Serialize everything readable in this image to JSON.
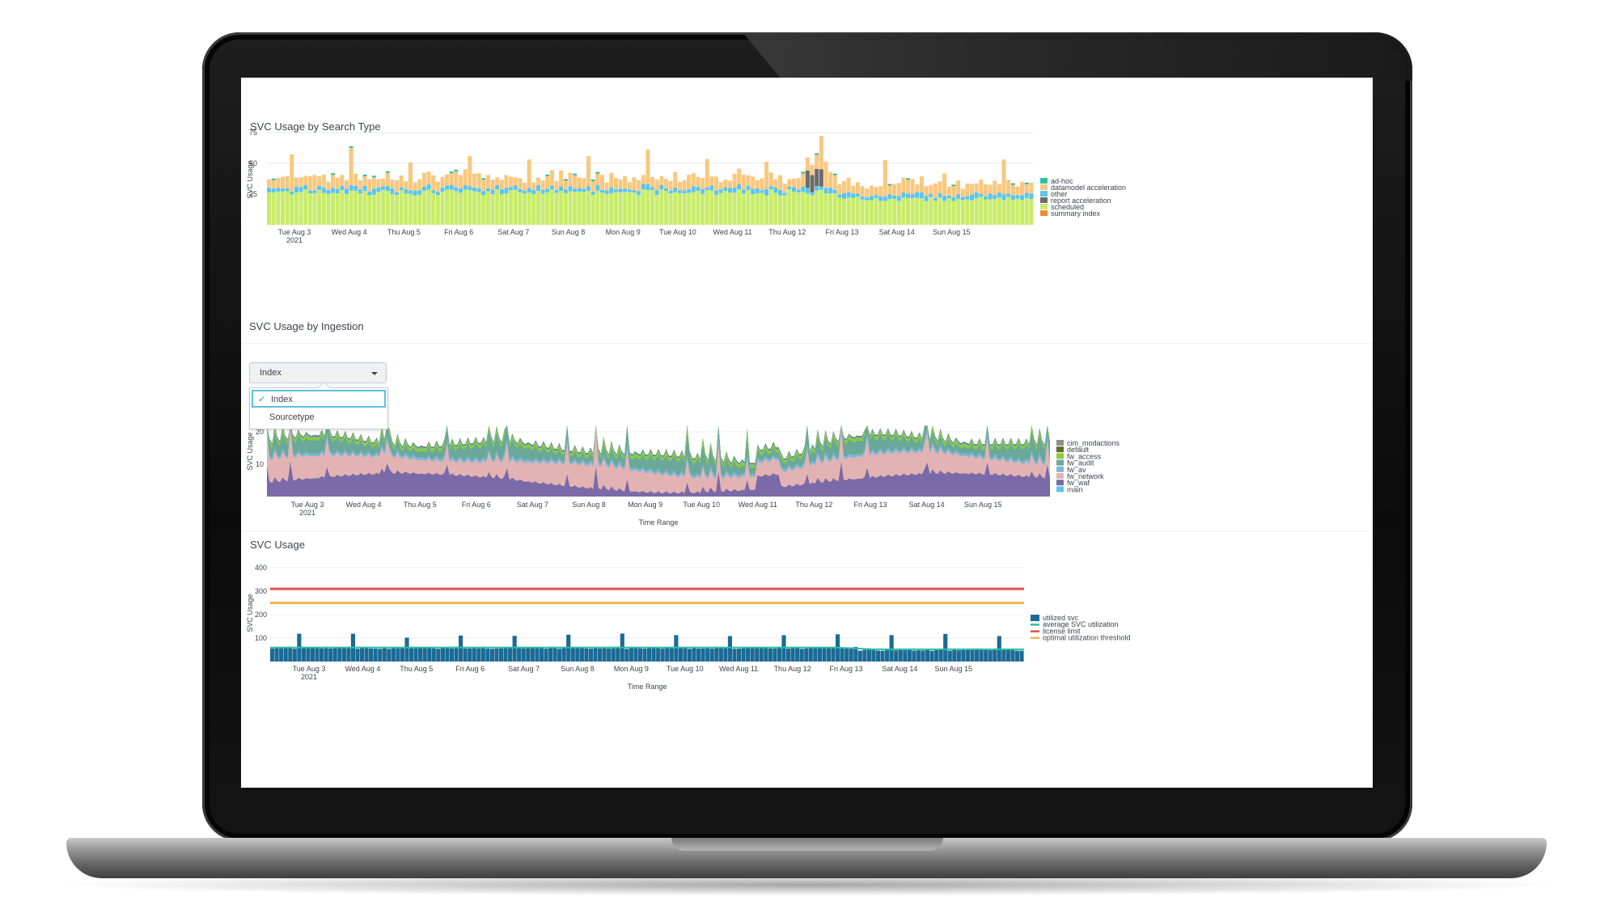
{
  "charts": {
    "search_type": {
      "title": "SVC Usage by Search Type",
      "ylabel": "SVC Usage",
      "yticks": [
        "75",
        "50",
        "25"
      ],
      "xticks": [
        "Tue Aug 3",
        "Wed Aug 4",
        "Thu Aug 5",
        "Fri Aug 6",
        "Sat Aug 7",
        "Sun Aug 8",
        "Mon Aug 9",
        "Tue Aug 10",
        "Wed Aug 11",
        "Thu Aug 12",
        "Fri Aug 13",
        "Sat Aug 14",
        "Sun Aug 15"
      ],
      "year": "2021",
      "legend": [
        {
          "name": "ad-hoc",
          "color": "#2fbf9f"
        },
        {
          "name": "datamodel acceleration",
          "color": "#f8c87f"
        },
        {
          "name": "other",
          "color": "#5bc4f0"
        },
        {
          "name": "report acceleration",
          "color": "#6b6b6b"
        },
        {
          "name": "scheduled",
          "color": "#c8ec6a"
        },
        {
          "name": "summary index",
          "color": "#f58a2c"
        }
      ]
    },
    "ingestion": {
      "title": "SVC Usage by Ingestion",
      "ylabel": "SVC Usage",
      "xlabel": "Time Range",
      "yticks": [
        "20",
        "10"
      ],
      "xticks": [
        "Tue Aug 3",
        "Wed Aug 4",
        "Thu Aug 5",
        "Fri Aug 6",
        "Sat Aug 7",
        "Sun Aug 8",
        "Mon Aug 9",
        "Tue Aug 10",
        "Wed Aug 11",
        "Thu Aug 12",
        "Fri Aug 13",
        "Sat Aug 14",
        "Sun Aug 15"
      ],
      "year": "2021",
      "legend": [
        {
          "name": "cim_modactions",
          "color": "#8f8f8f"
        },
        {
          "name": "default",
          "color": "#5a6e2a"
        },
        {
          "name": "fw_access",
          "color": "#8fc83e"
        },
        {
          "name": "fw_audit",
          "color": "#6aa89a"
        },
        {
          "name": "fw_av",
          "color": "#7fb7d8"
        },
        {
          "name": "fw_network",
          "color": "#e3b3b4"
        },
        {
          "name": "fw_waf",
          "color": "#7a6aa8"
        },
        {
          "name": "main",
          "color": "#5bc4f0"
        }
      ],
      "dropdown": {
        "selected": "Index",
        "options": [
          "Index",
          "Sourcetype"
        ]
      }
    },
    "usage": {
      "title": "SVC Usage",
      "ylabel": "SVC Usage",
      "xlabel": "Time Range",
      "yticks": [
        "400",
        "300",
        "200",
        "100"
      ],
      "xticks": [
        "Tue Aug 3",
        "Wed Aug 4",
        "Thu Aug 5",
        "Fri Aug 6",
        "Sat Aug 7",
        "Sun Aug 8",
        "Mon Aug 9",
        "Tue Aug 10",
        "Wed Aug 11",
        "Thu Aug 12",
        "Fri Aug 13",
        "Sat Aug 14",
        "Sun Aug 15"
      ],
      "year": "2021",
      "legend": [
        {
          "name": "utilized svc",
          "color": "#1b6a96",
          "swatch": "box"
        },
        {
          "name": "average SVC utilization",
          "color": "#2fbf9f",
          "swatch": "line"
        },
        {
          "name": "license limit",
          "color": "#e8504a",
          "swatch": "line"
        },
        {
          "name": "optimal utilization threshold",
          "color": "#f6b34c",
          "swatch": "line"
        }
      ]
    }
  },
  "chart_data": [
    {
      "type": "bar",
      "title": "SVC Usage by Search Type",
      "ylabel": "SVC Usage",
      "ylim": [
        0,
        75
      ],
      "x_range": [
        "Tue Aug 3 2021",
        "Sun Aug 15 2021"
      ],
      "series": [
        {
          "name": "scheduled",
          "typical_value": 25
        },
        {
          "name": "other",
          "typical_value": 3
        },
        {
          "name": "datamodel acceleration",
          "typical_value": 10
        },
        {
          "name": "ad-hoc",
          "typical_value": 1
        },
        {
          "name": "report acceleration",
          "typical_value": 0
        },
        {
          "name": "summary index",
          "typical_value": 0
        }
      ]
    },
    {
      "type": "area",
      "title": "SVC Usage by Ingestion",
      "ylabel": "SVC Usage",
      "xlabel": "Time Range",
      "x_range": [
        "Tue Aug 3 2021",
        "Sun Aug 15 2021"
      ],
      "series": [
        {
          "name": "fw_waf",
          "typical_value": 5
        },
        {
          "name": "fw_network",
          "typical_value": 6
        },
        {
          "name": "fw_av",
          "typical_value": 1
        },
        {
          "name": "fw_audit",
          "typical_value": 3
        },
        {
          "name": "fw_access",
          "typical_value": 1
        },
        {
          "name": "main",
          "typical_value": 0.3
        },
        {
          "name": "default",
          "typical_value": 0.2
        },
        {
          "name": "cim_modactions",
          "typical_value": 0.2
        }
      ]
    },
    {
      "type": "bar",
      "title": "SVC Usage",
      "ylabel": "SVC Usage",
      "xlabel": "Time Range",
      "ylim": [
        0,
        400
      ],
      "series": [
        {
          "name": "utilized svc",
          "typical_value": 55
        },
        {
          "name": "average SVC utilization",
          "value": 60
        },
        {
          "name": "license limit",
          "value": 310
        },
        {
          "name": "optimal utilization threshold",
          "value": 250
        }
      ]
    }
  ]
}
